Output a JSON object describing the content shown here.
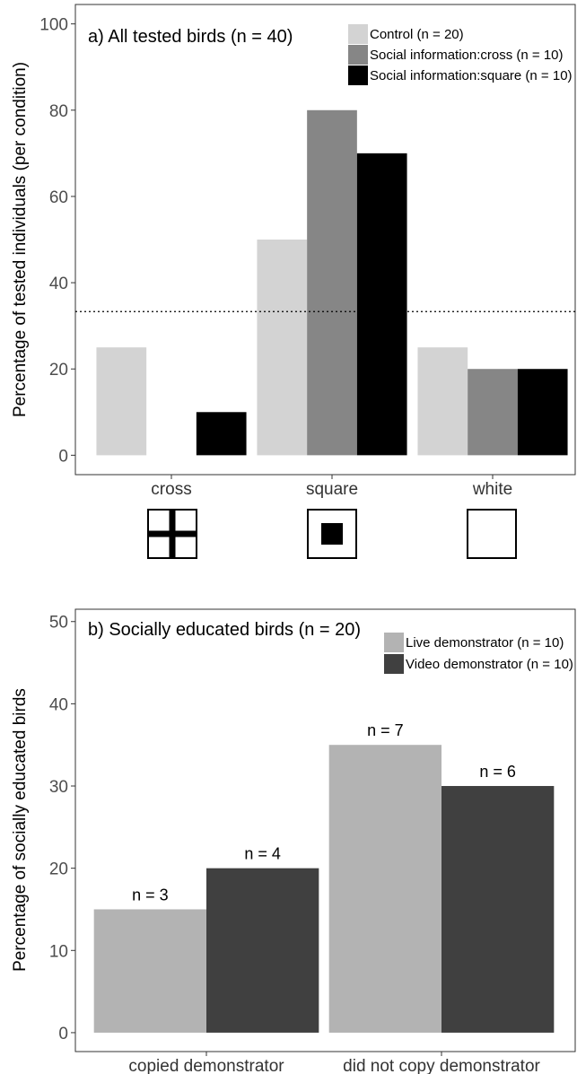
{
  "chart_data": [
    {
      "type": "bar",
      "title": "a) All tested birds (n = 40)",
      "ylabel": "Percentage of tested individuals (per condition)",
      "xlabel": "",
      "categories": [
        "cross",
        "square",
        "white"
      ],
      "category_symbols": [
        "cross-symbol-icon",
        "square-symbol-icon",
        "white-symbol-icon"
      ],
      "series": [
        {
          "name": "Control (n = 20)",
          "color": "#d3d3d3",
          "values": [
            25,
            50,
            25
          ]
        },
        {
          "name": "Social information:cross (n = 10)",
          "color": "#868686",
          "values": [
            0,
            80,
            20
          ]
        },
        {
          "name": "Social information:square (n = 10)",
          "color": "#000000",
          "values": [
            10,
            70,
            20
          ]
        }
      ],
      "reference_line": 33.3,
      "ylim": [
        -4.5,
        104.5
      ],
      "yticks": [
        0,
        20,
        40,
        60,
        80,
        100
      ],
      "grid": false,
      "legend_position": "top-right"
    },
    {
      "type": "bar",
      "title": "b) Socially educated birds (n = 20)",
      "ylabel": "Percentage of socially educated birds",
      "xlabel": "",
      "categories": [
        "copied demonstrator",
        "did not copy demonstrator"
      ],
      "series": [
        {
          "name": "Live demonstrator (n = 10)",
          "color": "#b3b3b3",
          "values": [
            15,
            35
          ],
          "labels": [
            "n = 3",
            "n = 7"
          ]
        },
        {
          "name": "Video demonstrator (n = 10)",
          "color": "#404040",
          "values": [
            20,
            30
          ],
          "labels": [
            "n = 4",
            "n = 6"
          ]
        }
      ],
      "ylim": [
        -2.3,
        51.5
      ],
      "yticks": [
        0,
        10,
        20,
        30,
        40,
        50
      ],
      "grid": false,
      "legend_position": "top-right"
    }
  ]
}
